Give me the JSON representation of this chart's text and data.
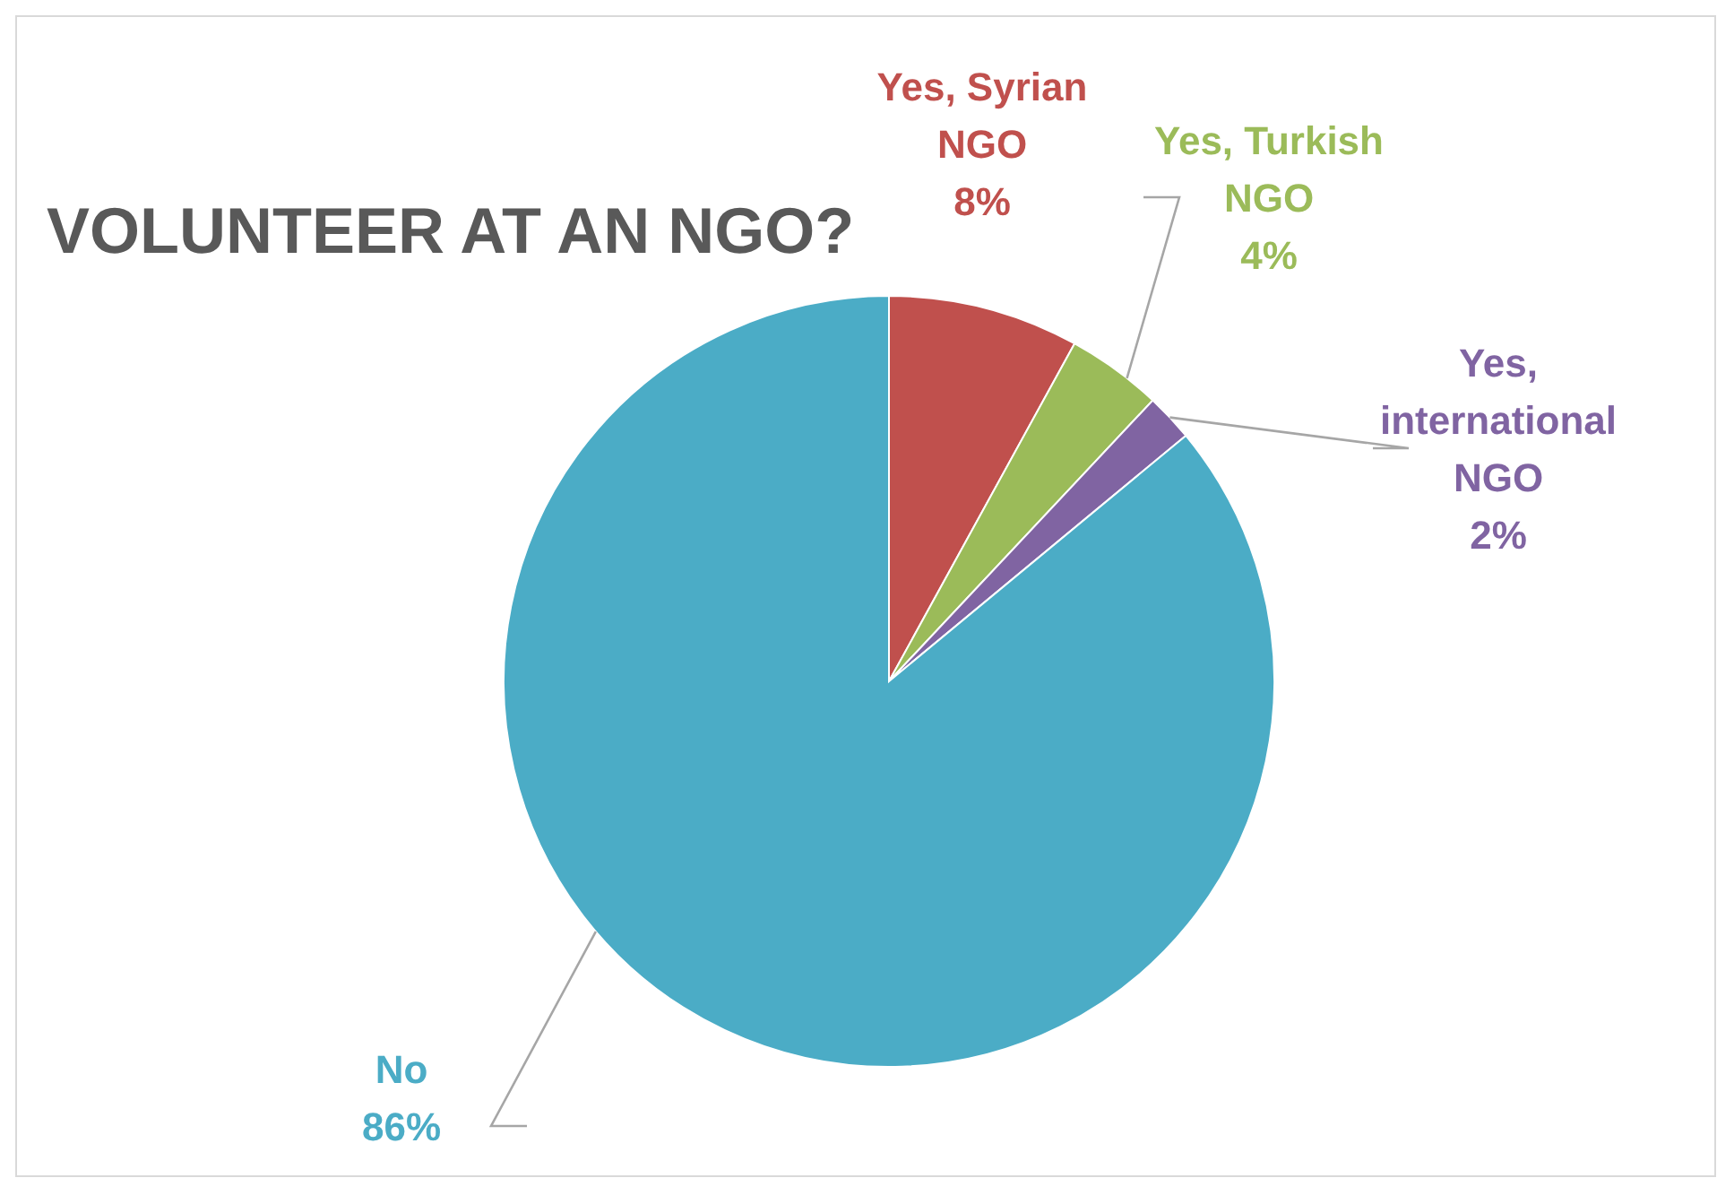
{
  "chart_data": {
    "type": "pie",
    "title": "VOLUNTEER AT AN NGO?",
    "categories": [
      "Yes, Syrian NGO",
      "Yes, Turkish NGO",
      "Yes, international NGO",
      "No"
    ],
    "values": [
      8,
      4,
      2,
      86
    ],
    "value_labels": [
      "8%",
      "4%",
      "2%",
      "86%"
    ],
    "colors": [
      "#c0504d",
      "#9bbb59",
      "#8064a2",
      "#4bacc6"
    ],
    "legend": false
  }
}
